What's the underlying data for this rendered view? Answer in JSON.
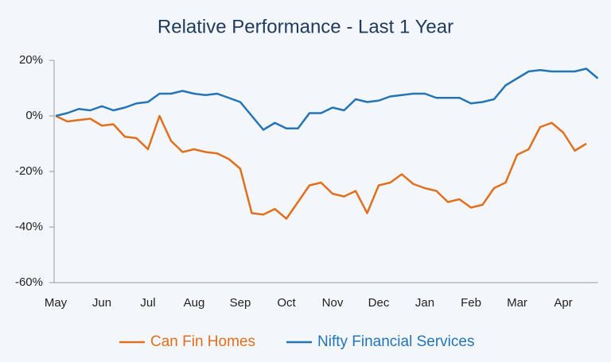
{
  "chart_data": {
    "type": "line",
    "title": "Relative Performance - Last 1 Year",
    "categories": [
      "May",
      null,
      null,
      null,
      "Jun",
      null,
      null,
      null,
      "Jul",
      null,
      null,
      null,
      "Aug",
      null,
      null,
      null,
      "Sep",
      null,
      null,
      null,
      "Oct",
      null,
      null,
      null,
      "Nov",
      null,
      null,
      null,
      "Dec",
      null,
      null,
      null,
      "Jan",
      null,
      null,
      null,
      "Feb",
      null,
      null,
      null,
      "Mar",
      null,
      null,
      null,
      "Apr",
      null,
      null,
      null
    ],
    "series": [
      {
        "name": "Can Fin Homes",
        "color": "#e0701f",
        "values": [
          0,
          -2,
          -1.5,
          -1,
          -3.5,
          -3,
          -7.5,
          -8,
          -12,
          0,
          -9,
          -13,
          -12,
          -13,
          -13.5,
          -15.5,
          -19,
          -35,
          -35.5,
          -33.5,
          -37,
          -31,
          -25,
          -24,
          -28,
          -29,
          -27,
          -35,
          -25,
          -24,
          -21,
          -24.5,
          -26,
          -27,
          -31,
          -30,
          -33,
          -32,
          -26,
          -24,
          -14,
          -12,
          -4,
          -2.5,
          -6,
          -12.5,
          -10,
          null
        ]
      },
      {
        "name": "Nifty Financial Services",
        "color": "#2474b8",
        "values": [
          0,
          1,
          2.5,
          2,
          3.5,
          2,
          3,
          4.5,
          5,
          8,
          8,
          9,
          8,
          7.5,
          8,
          6.5,
          5,
          0,
          -5,
          -2.5,
          -4.5,
          -4.5,
          1,
          1,
          3,
          2,
          6,
          5,
          5.5,
          7,
          7.5,
          8,
          8,
          6.5,
          6.5,
          6.5,
          4.5,
          5,
          6,
          11,
          13.5,
          16,
          16.5,
          16,
          16,
          16,
          17,
          13.5
        ]
      }
    ],
    "ylim": [
      -60,
      20
    ],
    "yticks": [
      {
        "value": 20,
        "label": "20%"
      },
      {
        "value": 0,
        "label": "0%"
      },
      {
        "value": -20,
        "label": "-20%"
      },
      {
        "value": -40,
        "label": "-40%"
      },
      {
        "value": -60,
        "label": "-60%"
      }
    ],
    "grid": false,
    "legend": "bottom"
  }
}
